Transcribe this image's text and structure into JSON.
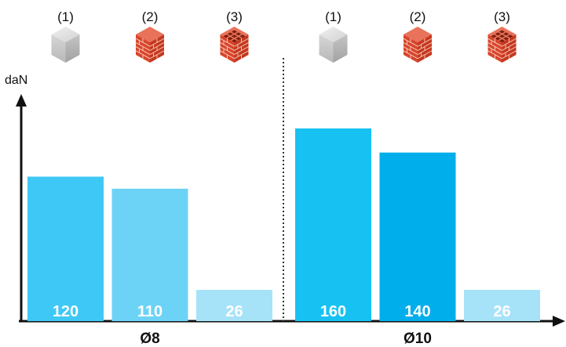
{
  "chart_data": {
    "type": "bar",
    "ylabel": "daN",
    "groups": [
      {
        "label": "Ø8",
        "bars": [
          {
            "marker": "(1)",
            "material": "concrete-block-icon",
            "value": 120,
            "label": "120",
            "color": "#3ec8f5"
          },
          {
            "marker": "(2)",
            "material": "solid-brick-icon",
            "value": 110,
            "label": "110",
            "color": "#6dd3f6"
          },
          {
            "marker": "(3)",
            "material": "hollow-brick-icon",
            "value": 26,
            "label": "26",
            "color": "#a6e3f9"
          }
        ]
      },
      {
        "label": "Ø10",
        "bars": [
          {
            "marker": "(1)",
            "material": "concrete-block-icon",
            "value": 160,
            "label": "160",
            "color": "#17c1f2"
          },
          {
            "marker": "(2)",
            "material": "solid-brick-icon",
            "value": 140,
            "label": "140",
            "color": "#00aeeb"
          },
          {
            "marker": "(3)",
            "material": "hollow-brick-icon",
            "value": 26,
            "label": "26",
            "color": "#a6e3f9"
          }
        ]
      }
    ],
    "ylim": [
      0,
      200
    ],
    "grid": false,
    "legend": "none"
  }
}
